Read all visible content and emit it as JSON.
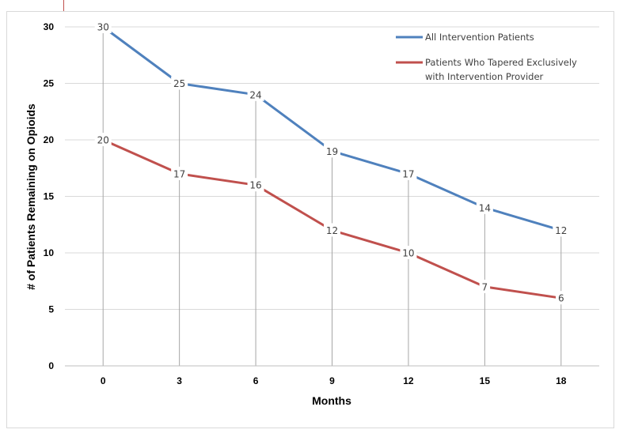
{
  "chart_data": {
    "type": "line",
    "title": "",
    "xlabel": "Months",
    "ylabel": "# of Patients Remaining on Opioids",
    "x": [
      0,
      3,
      6,
      9,
      12,
      15,
      18
    ],
    "x_tick_labels": [
      "0",
      "3",
      "6",
      "9",
      "12",
      "15",
      "18"
    ],
    "ylim": [
      0,
      30
    ],
    "y_ticks": [
      0,
      5,
      10,
      15,
      20,
      25,
      30
    ],
    "grid": "horizontal",
    "legend_position": "top-right",
    "series": [
      {
        "name": "All Intervention Patients",
        "color": "#4f81bd",
        "values": [
          30,
          25,
          24,
          19,
          17,
          14,
          12
        ]
      },
      {
        "name_lines": [
          "Patients Who Tapered Exclusively",
          "with Intervention Provider"
        ],
        "color": "#c0504d",
        "values": [
          20,
          17,
          16,
          12,
          10,
          7,
          6
        ]
      }
    ]
  }
}
